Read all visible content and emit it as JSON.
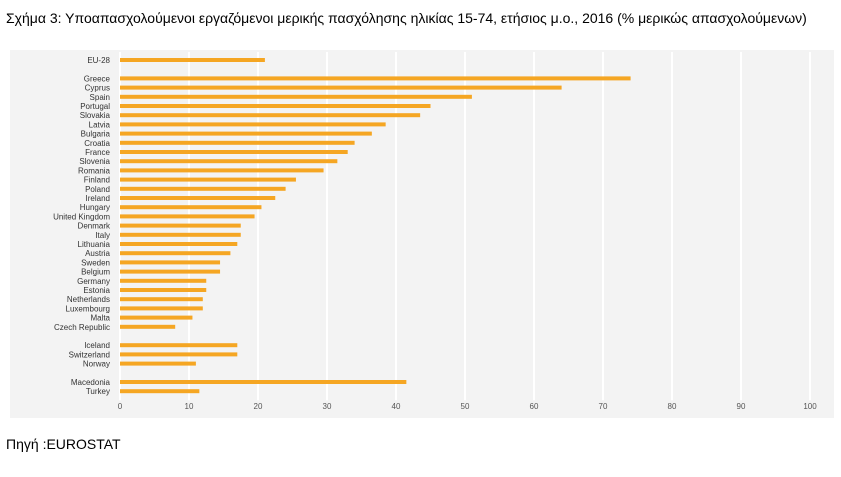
{
  "caption": "Σχήμα 3: Υποαπασχολούμενοι εργαζόμενοι μερικής πασχόλησης ηλικίας 15-74, ετήσιος μ.ο., 2016 (% μερικώς απασχολούμενων)",
  "source": "Πηγή :EUROSTAT",
  "chart_data": {
    "type": "bar",
    "orientation": "horizontal",
    "title": "",
    "xlabel": "",
    "ylabel": "",
    "xlim": [
      0,
      100
    ],
    "x_ticks": [
      0,
      10,
      20,
      30,
      40,
      50,
      60,
      70,
      80,
      90,
      100
    ],
    "grid": "vertical",
    "bar_color": "#f5a623",
    "categories": [
      "EU-28",
      "Greece",
      "Cyprus",
      "Spain",
      "Portugal",
      "Slovakia",
      "Latvia",
      "Bulgaria",
      "Croatia",
      "France",
      "Slovenia",
      "Romania",
      "Finland",
      "Poland",
      "Ireland",
      "Hungary",
      "United Kingdom",
      "Denmark",
      "Italy",
      "Lithuania",
      "Austria",
      "Sweden",
      "Belgium",
      "Germany",
      "Estonia",
      "Netherlands",
      "Luxembourg",
      "Malta",
      "Czech Republic",
      "Iceland",
      "Switzerland",
      "Norway",
      "Macedonia",
      "Turkey"
    ],
    "values": [
      21,
      74,
      64,
      51,
      45,
      43.5,
      38.5,
      36.5,
      34,
      33,
      31.5,
      29.5,
      25.5,
      24,
      22.5,
      20.5,
      19.5,
      17.5,
      17.5,
      17,
      16,
      14.5,
      14.5,
      12.5,
      12.5,
      12,
      12,
      10.5,
      8,
      17,
      17,
      11,
      41.5,
      11.5
    ],
    "groups": [
      1,
      28,
      3,
      2
    ]
  }
}
